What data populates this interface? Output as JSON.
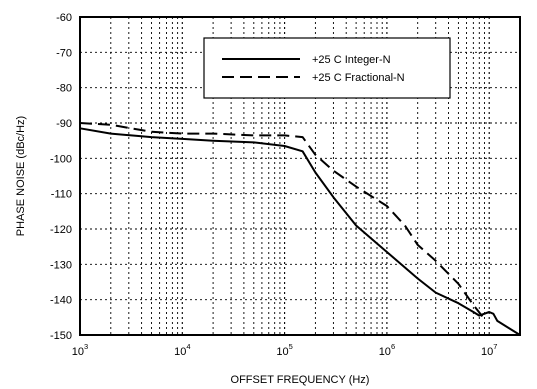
{
  "chart_data": {
    "type": "line",
    "title": "",
    "xlabel": "OFFSET FREQUENCY (Hz)",
    "ylabel": "PHASE NOISE (dBc/Hz)",
    "x_scale": "log",
    "xlim": [
      1000,
      20000000
    ],
    "ylim": [
      -150,
      -60
    ],
    "x_ticks": [
      {
        "base": "10",
        "exp": "3",
        "value": 1000
      },
      {
        "base": "10",
        "exp": "4",
        "value": 10000
      },
      {
        "base": "10",
        "exp": "5",
        "value": 100000
      },
      {
        "base": "10",
        "exp": "6",
        "value": 1000000
      },
      {
        "base": "10",
        "exp": "7",
        "value": 10000000
      }
    ],
    "y_ticks": [
      "-60",
      "-70",
      "-80",
      "-90",
      "-100",
      "-110",
      "-120",
      "-130",
      "-140",
      "-150"
    ],
    "grid": true,
    "grid_style": "dotted",
    "legend_position": "top-right",
    "series": [
      {
        "name": "+25 C Integer-N",
        "line_style": "solid",
        "color": "#000000",
        "x": [
          1000,
          2000,
          5000,
          10000,
          20000,
          50000,
          100000,
          150000,
          200000,
          300000,
          500000,
          1000000,
          2000000,
          3000000,
          5000000,
          7000000,
          8000000,
          10000000,
          11000000,
          12000000,
          20000000
        ],
        "y": [
          -91.5,
          -93,
          -94,
          -94.5,
          -95,
          -95.5,
          -96.5,
          -98,
          -104,
          -111,
          -119,
          -126.5,
          -134,
          -138,
          -141,
          -143.5,
          -144.5,
          -143.5,
          -144,
          -146,
          -150
        ]
      },
      {
        "name": "+25 C Fractional-N",
        "line_style": "dashed",
        "color": "#000000",
        "x": [
          1000,
          2000,
          5000,
          10000,
          20000,
          50000,
          100000,
          150000,
          200000,
          300000,
          500000,
          1000000,
          1500000,
          2000000,
          3000000,
          5000000,
          7000000,
          9000000
        ],
        "y": [
          -90,
          -90.5,
          -92.5,
          -93,
          -93,
          -93.5,
          -93.5,
          -94,
          -99,
          -103.5,
          -108,
          -113.5,
          -119,
          -124.5,
          -129,
          -135.5,
          -141.5,
          -145.5
        ]
      }
    ]
  }
}
